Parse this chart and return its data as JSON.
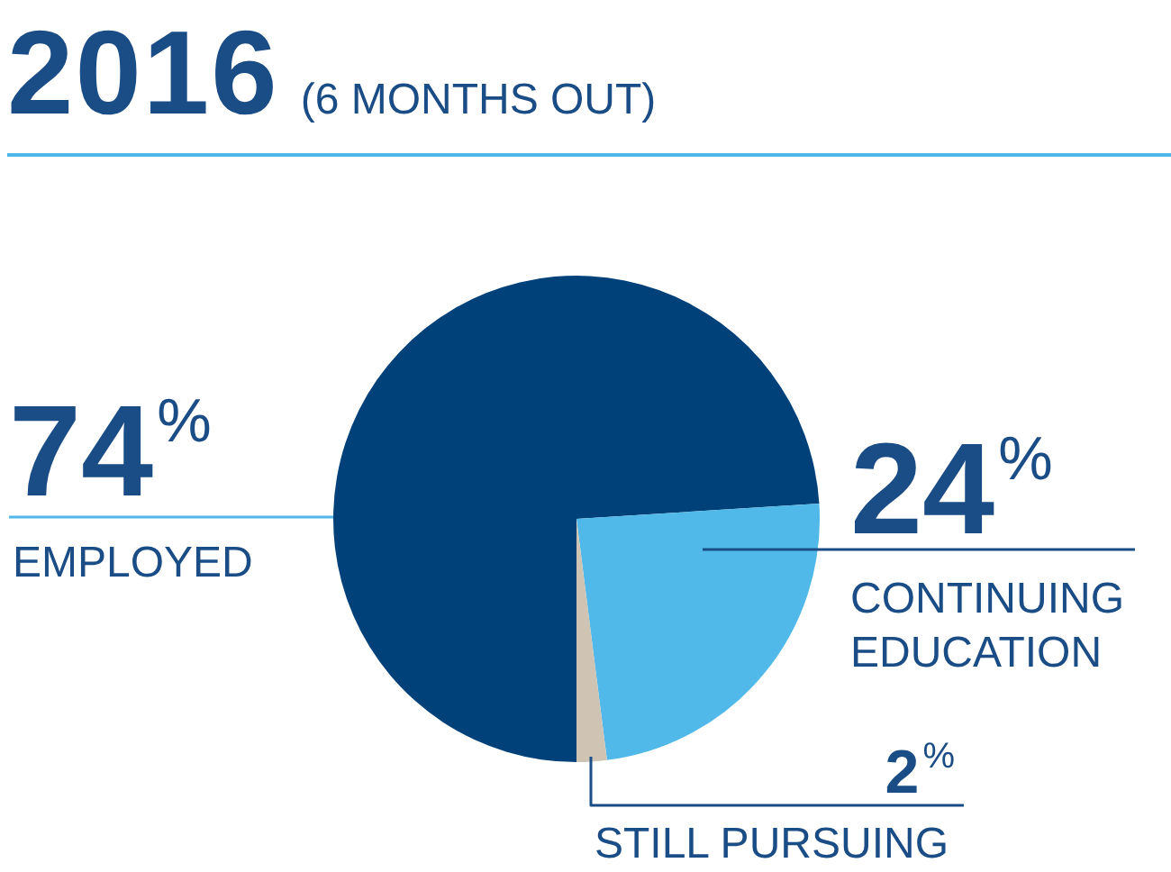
{
  "chart_data": {
    "type": "pie",
    "title": "2016",
    "subtitle": "(6 MONTHS OUT)",
    "categories": [
      "EMPLOYED",
      "CONTINUING EDUCATION",
      "STILL PURSUING"
    ],
    "values": [
      74,
      24,
      2
    ],
    "colors": [
      "#00417a",
      "#50b9e9",
      "#cfc3b4"
    ],
    "value_labels": [
      "74%",
      "24%",
      "2%"
    ],
    "legend": false
  }
}
